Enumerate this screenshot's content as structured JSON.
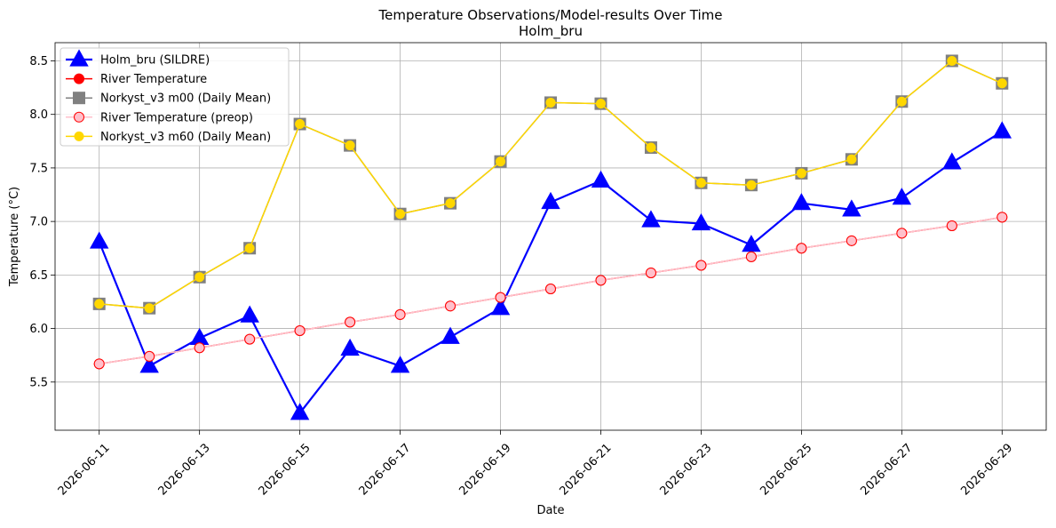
{
  "chart_data": {
    "type": "line",
    "title": "Temperature Observations/Model-results Over Time",
    "subtitle": "Holm_bru",
    "xlabel": "Date",
    "ylabel": "Temperature (°C)",
    "x": [
      "2026-06-11",
      "2026-06-12",
      "2026-06-13",
      "2026-06-14",
      "2026-06-15",
      "2026-06-16",
      "2026-06-17",
      "2026-06-18",
      "2026-06-19",
      "2026-06-20",
      "2026-06-21",
      "2026-06-22",
      "2026-06-23",
      "2026-06-24",
      "2026-06-25",
      "2026-06-26",
      "2026-06-27",
      "2026-06-28",
      "2026-06-29"
    ],
    "xticks": [
      "2026-06-11",
      "2026-06-13",
      "2026-06-15",
      "2026-06-17",
      "2026-06-19",
      "2026-06-21",
      "2026-06-23",
      "2026-06-25",
      "2026-06-27",
      "2026-06-29"
    ],
    "yticks": [
      "5.5",
      "6.0",
      "6.5",
      "7.0",
      "7.5",
      "8.0",
      "8.5"
    ],
    "ylim": [
      5.05,
      8.67
    ],
    "grid": true,
    "legend_position": "top-left",
    "series": [
      {
        "name": "Holm_bru (SILDRE)",
        "color": "#0000ff",
        "marker": "triangle",
        "values": [
          6.81,
          5.65,
          5.91,
          6.12,
          5.21,
          5.81,
          5.65,
          5.92,
          6.19,
          7.18,
          7.38,
          7.01,
          6.98,
          6.78,
          7.17,
          7.11,
          7.22,
          7.55,
          7.84
        ]
      },
      {
        "name": "River Temperature",
        "color": "#ff0000",
        "marker": "circle",
        "values": [
          5.67,
          5.74,
          5.82,
          5.9,
          5.98,
          6.06,
          6.13,
          6.21,
          6.29,
          6.37,
          6.45,
          6.52,
          6.59,
          6.67,
          6.75,
          6.82,
          6.89,
          6.96,
          7.04
        ]
      },
      {
        "name": "Norkyst_v3 m00 (Daily Mean)",
        "color": "#808080",
        "marker": "square",
        "values": [
          6.23,
          6.19,
          6.48,
          6.75,
          7.91,
          7.71,
          7.07,
          7.17,
          7.56,
          8.11,
          8.1,
          7.69,
          7.36,
          7.34,
          7.45,
          7.58,
          8.12,
          8.5,
          8.29
        ]
      },
      {
        "name": "River Temperature (preop)",
        "color": "#ffc0cb",
        "marker": "circle",
        "values": [
          5.67,
          5.74,
          5.82,
          5.9,
          5.98,
          6.06,
          6.13,
          6.21,
          6.29,
          6.37,
          6.45,
          6.52,
          6.59,
          6.67,
          6.75,
          6.82,
          6.89,
          6.96,
          7.04
        ]
      },
      {
        "name": "Norkyst_v3 m60 (Daily Mean)",
        "color": "#ffd700",
        "marker": "circle",
        "values": [
          6.23,
          6.19,
          6.48,
          6.75,
          7.91,
          7.71,
          7.07,
          7.17,
          7.56,
          8.11,
          8.1,
          7.69,
          7.36,
          7.34,
          7.45,
          7.58,
          8.12,
          8.5,
          8.29
        ]
      }
    ]
  }
}
